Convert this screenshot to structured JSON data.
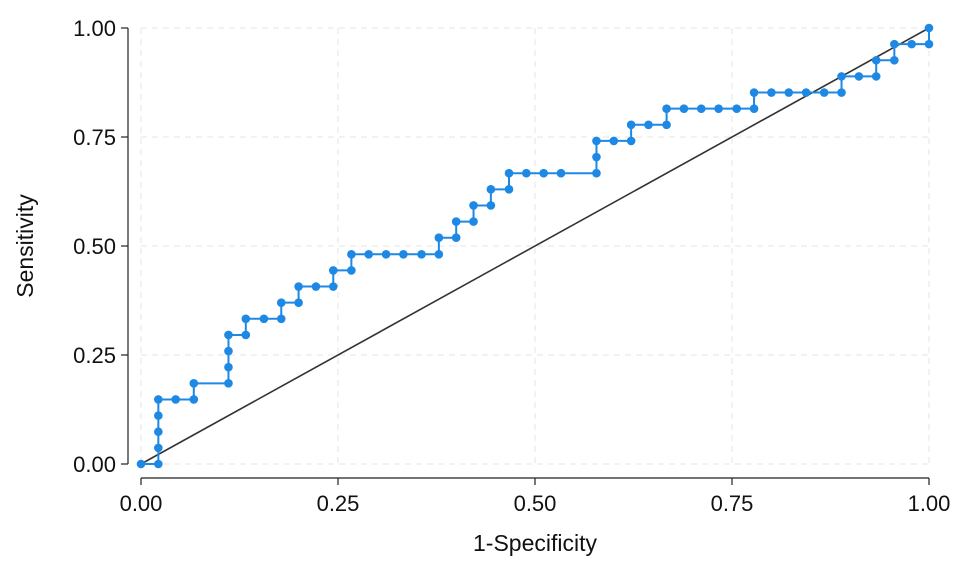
{
  "chart_data": {
    "type": "line",
    "xlabel": "1-Specificity",
    "ylabel": "Sensitivity",
    "xlim": [
      0,
      1
    ],
    "ylim": [
      0,
      1
    ],
    "x_ticks": [
      "0.00",
      "0.25",
      "0.50",
      "0.75",
      "1.00"
    ],
    "y_ticks": [
      "0.00",
      "0.25",
      "0.50",
      "0.75",
      "1.00"
    ],
    "grid": true,
    "series": [
      {
        "color": "#1e88e5",
        "marker": "circle",
        "x": [
          0,
          0.022,
          0.022,
          0.022,
          0.022,
          0.022,
          0.044,
          0.067,
          0.067,
          0.111,
          0.111,
          0.111,
          0.111,
          0.133,
          0.133,
          0.156,
          0.178,
          0.178,
          0.2,
          0.2,
          0.222,
          0.244,
          0.244,
          0.267,
          0.267,
          0.289,
          0.311,
          0.333,
          0.356,
          0.378,
          0.378,
          0.4,
          0.4,
          0.422,
          0.422,
          0.444,
          0.444,
          0.467,
          0.467,
          0.489,
          0.511,
          0.533,
          0.578,
          0.578,
          0.578,
          0.6,
          0.622,
          0.622,
          0.644,
          0.667,
          0.667,
          0.689,
          0.711,
          0.733,
          0.756,
          0.778,
          0.778,
          0.8,
          0.822,
          0.844,
          0.867,
          0.889,
          0.889,
          0.911,
          0.933,
          0.933,
          0.956,
          0.956,
          0.978,
          1.0,
          1.0
        ],
        "y": [
          0,
          0,
          0.037,
          0.074,
          0.111,
          0.148,
          0.148,
          0.148,
          0.185,
          0.185,
          0.222,
          0.259,
          0.296,
          0.296,
          0.333,
          0.333,
          0.333,
          0.37,
          0.37,
          0.407,
          0.407,
          0.407,
          0.444,
          0.444,
          0.481,
          0.481,
          0.481,
          0.481,
          0.481,
          0.481,
          0.519,
          0.519,
          0.556,
          0.556,
          0.593,
          0.593,
          0.63,
          0.63,
          0.667,
          0.667,
          0.667,
          0.667,
          0.667,
          0.704,
          0.741,
          0.741,
          0.741,
          0.778,
          0.778,
          0.778,
          0.815,
          0.815,
          0.815,
          0.815,
          0.815,
          0.815,
          0.852,
          0.852,
          0.852,
          0.852,
          0.852,
          0.852,
          0.889,
          0.889,
          0.889,
          0.926,
          0.926,
          0.963,
          0.963,
          0.963,
          1.0
        ]
      }
    ],
    "reference_line": {
      "x": [
        0,
        1
      ],
      "y": [
        0,
        1
      ],
      "color": "#333333"
    }
  }
}
